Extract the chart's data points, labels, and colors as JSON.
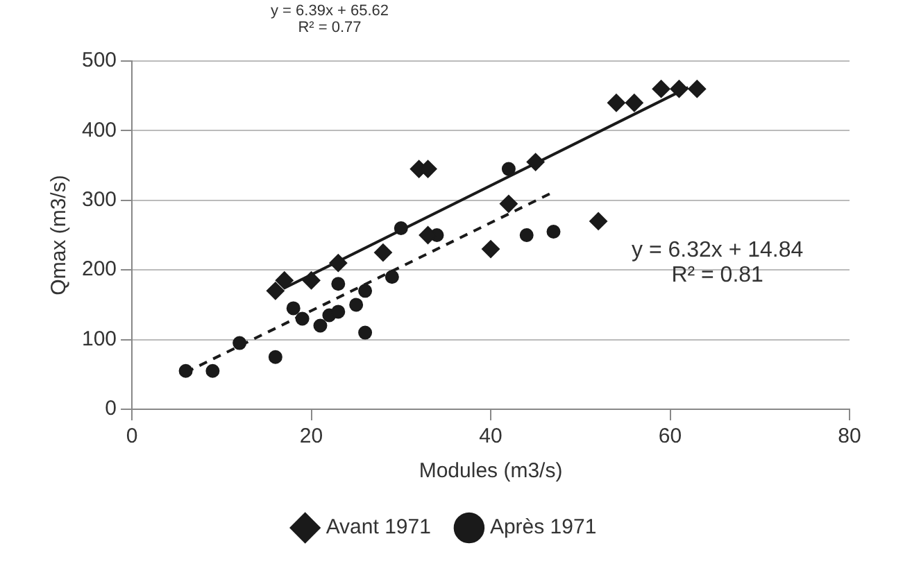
{
  "chart_data": {
    "type": "scatter",
    "xlabel": "Modules (m3/s)",
    "ylabel": "Qmax (m3/s)",
    "xlim": [
      0,
      80
    ],
    "xticks": [
      0,
      20,
      40,
      60,
      80
    ],
    "ylim": [
      0,
      500
    ],
    "yticks": [
      0,
      100,
      200,
      300,
      400,
      500
    ],
    "grid": "y",
    "legend": "bottom",
    "annotations": [
      "y = 6.39x + 65.62\nR² = 0.77",
      "y = 6.32x + 14.84\nR² = 0.81"
    ],
    "series": [
      {
        "name": "Avant 1971",
        "color": "#1a1a1a",
        "marker": "diamond",
        "x": [
          16,
          17,
          20,
          23,
          28,
          32,
          33,
          33,
          40,
          42,
          45,
          52,
          54,
          56,
          59,
          61,
          63
        ],
        "values": [
          170,
          185,
          185,
          210,
          225,
          345,
          345,
          250,
          230,
          295,
          355,
          270,
          440,
          440,
          460,
          460,
          460
        ]
      },
      {
        "name": "Après 1971",
        "color": "#1a1a1a",
        "marker": "circle",
        "x": [
          6,
          9,
          12,
          16,
          18,
          19,
          21,
          22,
          23,
          23,
          25,
          26,
          26,
          29,
          30,
          34,
          42,
          44,
          47
        ],
        "values": [
          55,
          55,
          95,
          75,
          145,
          130,
          120,
          135,
          140,
          180,
          150,
          170,
          110,
          190,
          260,
          250,
          345,
          250,
          255
        ]
      },
      {
        "type": "line",
        "color": "#1a1a1a",
        "line_style": "solid",
        "x": [
          17,
          62
        ],
        "values": [
          174,
          462
        ]
      },
      {
        "type": "line",
        "color": "#1a1a1a",
        "line_style": "dashed",
        "x": [
          6,
          47
        ],
        "values": [
          53,
          312
        ]
      }
    ]
  }
}
